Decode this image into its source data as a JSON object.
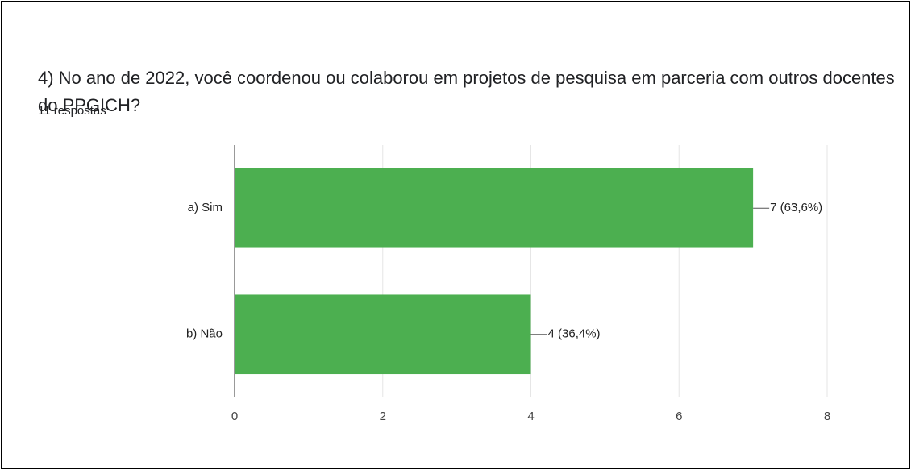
{
  "chart_data": {
    "type": "bar",
    "orientation": "horizontal",
    "title": "4) No ano de 2022, você coordenou ou colaborou em projetos de pesquisa em parceria com outros docentes do PPGICH?",
    "subtitle": "11 respostas",
    "categories": [
      "a) Sim",
      "b) Não"
    ],
    "values": [
      7,
      4
    ],
    "value_labels": [
      "7 (63,6%)",
      "4 (36,4%)"
    ],
    "color": "#4caf50",
    "xlim": [
      0,
      8
    ],
    "xticks": [
      0,
      2,
      4,
      6,
      8
    ],
    "grid": true
  }
}
